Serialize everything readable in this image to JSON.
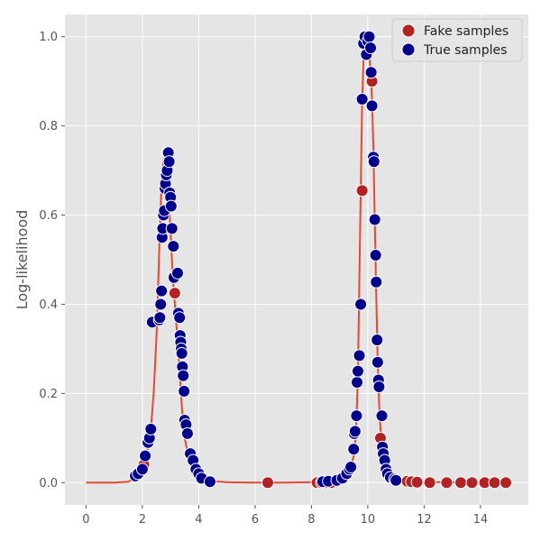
{
  "chart_data": {
    "type": "scatter",
    "title": "",
    "xlabel": "",
    "ylabel": "Log-likelihood",
    "xlim": [
      -0.75,
      15.7
    ],
    "ylim": [
      -0.05,
      1.05
    ],
    "xticks": [
      0,
      2,
      4,
      6,
      8,
      10,
      12,
      14
    ],
    "yticks": [
      0.0,
      0.2,
      0.4,
      0.6,
      0.8,
      1.0
    ],
    "xtick_labels": [
      "0",
      "2",
      "4",
      "6",
      "8",
      "10",
      "12",
      "14"
    ],
    "ytick_labels": [
      "0.0",
      "0.2",
      "0.4",
      "0.6",
      "0.8",
      "1.0"
    ],
    "grid": true,
    "legend_position": "top-right",
    "colors": {
      "background": "#e5e5e5",
      "grid": "#ffffff",
      "curve": "#e24a33",
      "fake": "#b22222",
      "true": "#00008b"
    },
    "curve": {
      "x": [
        0.0,
        0.5,
        1.0,
        1.5,
        1.7,
        1.9,
        2.0,
        2.1,
        2.2,
        2.3,
        2.4,
        2.5,
        2.55,
        2.6,
        2.65,
        2.7,
        2.75,
        2.8,
        2.85,
        2.9,
        2.95,
        3.0,
        3.05,
        3.1,
        3.15,
        3.2,
        3.25,
        3.3,
        3.35,
        3.4,
        3.45,
        3.5,
        3.6,
        3.7,
        3.8,
        3.9,
        4.0,
        4.2,
        4.5,
        5.0,
        6.0,
        7.0,
        8.0,
        8.5,
        8.8,
        9.0,
        9.2,
        9.3,
        9.4,
        9.5,
        9.55,
        9.6,
        9.65,
        9.7,
        9.75,
        9.8,
        9.85,
        9.9,
        9.95,
        10.0,
        10.05,
        10.1,
        10.15,
        10.2,
        10.25,
        10.3,
        10.35,
        10.4,
        10.45,
        10.5,
        10.6,
        10.7,
        10.8,
        11.0,
        11.3,
        11.7,
        12.5,
        15.0
      ],
      "y": [
        0.0,
        0.0,
        0.0,
        0.002,
        0.01,
        0.02,
        0.035,
        0.055,
        0.08,
        0.12,
        0.2,
        0.33,
        0.42,
        0.53,
        0.62,
        0.69,
        0.72,
        0.735,
        0.72,
        0.68,
        0.62,
        0.56,
        0.5,
        0.44,
        0.4,
        0.36,
        0.32,
        0.27,
        0.22,
        0.17,
        0.13,
        0.1,
        0.07,
        0.045,
        0.03,
        0.02,
        0.012,
        0.006,
        0.003,
        0.001,
        0.0,
        0.0,
        0.001,
        0.002,
        0.004,
        0.008,
        0.015,
        0.022,
        0.035,
        0.06,
        0.09,
        0.14,
        0.25,
        0.45,
        0.66,
        0.85,
        0.95,
        0.98,
        0.99,
        0.985,
        0.96,
        0.92,
        0.86,
        0.75,
        0.58,
        0.42,
        0.28,
        0.18,
        0.12,
        0.08,
        0.05,
        0.03,
        0.02,
        0.01,
        0.005,
        0.002,
        0.001,
        0.0
      ]
    },
    "series": [
      {
        "name": "Fake samples",
        "x": [
          2.05,
          3.15,
          6.45,
          8.2,
          8.35,
          8.5,
          8.7,
          9.8,
          10.15,
          10.45,
          11.4,
          11.55,
          11.75,
          12.2,
          12.8,
          13.3,
          13.7,
          14.15,
          14.5,
          14.9
        ],
        "y": [
          0.04,
          0.425,
          0.0,
          0.0,
          0.0,
          0.0,
          0.0,
          0.655,
          0.9,
          0.1,
          0.003,
          0.002,
          0.001,
          0.0,
          0.0,
          0.0,
          0.0,
          0.0,
          0.0,
          0.0
        ]
      },
      {
        "name": "True samples",
        "x": [
          1.75,
          1.85,
          2.0,
          2.1,
          2.2,
          2.25,
          2.3,
          2.35,
          2.6,
          2.62,
          2.65,
          2.68,
          2.7,
          2.72,
          2.75,
          2.78,
          2.8,
          2.82,
          2.85,
          2.88,
          2.9,
          2.92,
          2.95,
          2.97,
          3.0,
          3.02,
          3.05,
          3.1,
          3.12,
          3.25,
          3.28,
          3.32,
          3.34,
          3.36,
          3.38,
          3.4,
          3.42,
          3.45,
          3.48,
          3.5,
          3.55,
          3.6,
          3.7,
          3.8,
          3.9,
          4.0,
          4.1,
          4.4,
          8.4,
          8.6,
          8.9,
          9.1,
          9.25,
          9.35,
          9.4,
          9.5,
          9.52,
          9.55,
          9.6,
          9.62,
          9.65,
          9.7,
          9.75,
          9.8,
          9.85,
          9.9,
          9.95,
          10.0,
          10.05,
          10.1,
          10.12,
          10.15,
          10.2,
          10.22,
          10.25,
          10.28,
          10.3,
          10.33,
          10.35,
          10.38,
          10.4,
          10.5,
          10.52,
          10.55,
          10.6,
          10.65,
          10.7,
          10.8,
          10.95,
          11.0
        ],
        "y": [
          0.015,
          0.02,
          0.03,
          0.06,
          0.09,
          0.1,
          0.12,
          0.36,
          0.365,
          0.37,
          0.4,
          0.43,
          0.55,
          0.57,
          0.6,
          0.61,
          0.66,
          0.67,
          0.69,
          0.7,
          0.74,
          0.74,
          0.72,
          0.65,
          0.64,
          0.62,
          0.57,
          0.53,
          0.46,
          0.47,
          0.38,
          0.37,
          0.33,
          0.315,
          0.3,
          0.29,
          0.26,
          0.24,
          0.205,
          0.14,
          0.13,
          0.11,
          0.065,
          0.05,
          0.03,
          0.02,
          0.01,
          0.002,
          0.002,
          0.003,
          0.005,
          0.01,
          0.02,
          0.03,
          0.035,
          0.075,
          0.11,
          0.115,
          0.15,
          0.225,
          0.25,
          0.285,
          0.4,
          0.86,
          0.985,
          1.0,
          0.96,
          0.99,
          1.0,
          0.975,
          0.92,
          0.845,
          0.73,
          0.72,
          0.59,
          0.51,
          0.45,
          0.32,
          0.27,
          0.23,
          0.215,
          0.15,
          0.08,
          0.065,
          0.05,
          0.03,
          0.02,
          0.012,
          0.008,
          0.005
        ]
      }
    ]
  }
}
